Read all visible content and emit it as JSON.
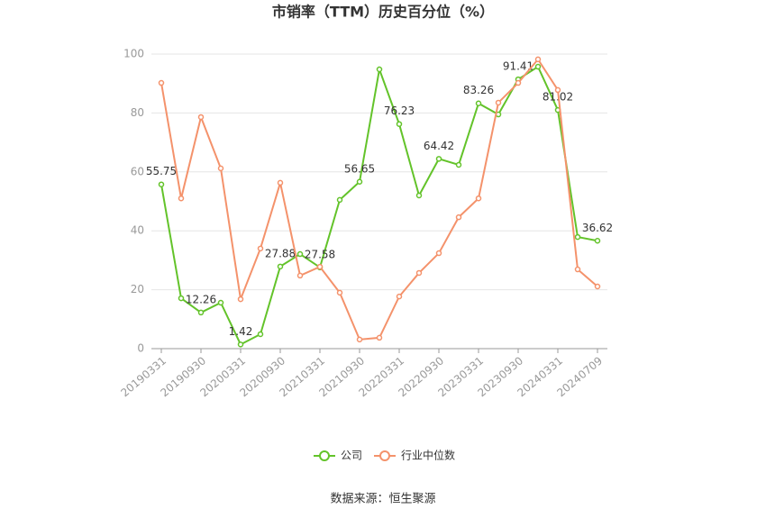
{
  "chart_data": {
    "type": "line",
    "title": "市销率（TTM）历史百分位（%）",
    "source": "数据来源：恒生聚源",
    "categories": [
      "20190331",
      null,
      "20190930",
      null,
      "20200331",
      null,
      "20200930",
      null,
      "20210331",
      null,
      "20210930",
      null,
      "20220331",
      null,
      "20220930",
      null,
      "20230331",
      null,
      "20230930",
      null,
      "20240331",
      null,
      "20240709"
    ],
    "series": [
      {
        "name": "公司",
        "color": "#63c32a",
        "values": [
          55.75,
          17.1,
          12.26,
          15.6,
          1.42,
          4.9,
          27.88,
          32.1,
          27.58,
          50.5,
          56.65,
          94.8,
          76.23,
          52,
          64.42,
          62.4,
          83.26,
          79.5,
          91.41,
          95.7,
          81.02,
          37.9,
          36.62
        ]
      },
      {
        "name": "行业中位数",
        "color": "#f4926b",
        "values": [
          90.2,
          51,
          78.6,
          61.2,
          16.8,
          34,
          56.3,
          24.8,
          27.8,
          19,
          3.1,
          3.7,
          17.7,
          25.7,
          32.4,
          44.6,
          51,
          83.5,
          90.2,
          98.2,
          87.8,
          26.9,
          21.1
        ]
      }
    ],
    "ylim": [
      0,
      100
    ],
    "yticks": [
      0,
      20,
      40,
      60,
      80,
      100
    ],
    "grid": true
  }
}
